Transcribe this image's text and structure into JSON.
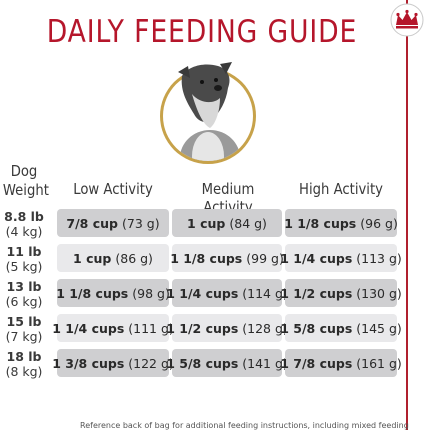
{
  "title": "DAILY FEEDING GUIDE",
  "icons": {
    "crown": "royal-crown-logo",
    "photo": "schnauzer-dog-photo"
  },
  "colors": {
    "title": "#b5162b",
    "row_dark": "#cfcfd1",
    "row_light": "#e9e9eb",
    "photo_ring": "#c7a24a"
  },
  "headers": {
    "weight_line1": "Dog",
    "weight_line2": "Weight",
    "low": "Low Activity",
    "medium": "Medium Activity",
    "high": "High Activity"
  },
  "rows": [
    {
      "lb": "8.8 lb",
      "kg": "(4 kg)",
      "low_amt": "7/8 cup",
      "low_g": "(73 g)",
      "med_amt": "1 cup",
      "med_g": "(84 g)",
      "high_amt": "1 1/8 cups",
      "high_g": "(96 g)"
    },
    {
      "lb": "11 lb",
      "kg": "(5 kg)",
      "low_amt": "1 cup",
      "low_g": "(86 g)",
      "med_amt": "1 1/8 cups",
      "med_g": "(99 g)",
      "high_amt": "1 1/4 cups",
      "high_g": "(113 g)"
    },
    {
      "lb": "13 lb",
      "kg": "(6 kg)",
      "low_amt": "1 1/8 cups",
      "low_g": "(98 g)",
      "med_amt": "1 1/4 cups",
      "med_g": "(114 g)",
      "high_amt": "1 1/2 cups",
      "high_g": "(130 g)"
    },
    {
      "lb": "15 lb",
      "kg": "(7 kg)",
      "low_amt": "1 1/4 cups",
      "low_g": "(111 g)",
      "med_amt": "1 1/2 cups",
      "med_g": "(128 g)",
      "high_amt": "1 5/8 cups",
      "high_g": "(145 g)"
    },
    {
      "lb": "18 lb",
      "kg": "(8 kg)",
      "low_amt": "1 3/8 cups",
      "low_g": "(122 g)",
      "med_amt": "1 5/8 cups",
      "med_g": "(141 g)",
      "high_amt": "1 7/8 cups",
      "high_g": "(161 g)"
    }
  ],
  "footnote": "Reference back of bag for additional feeding instructions, including mixed feeding"
}
